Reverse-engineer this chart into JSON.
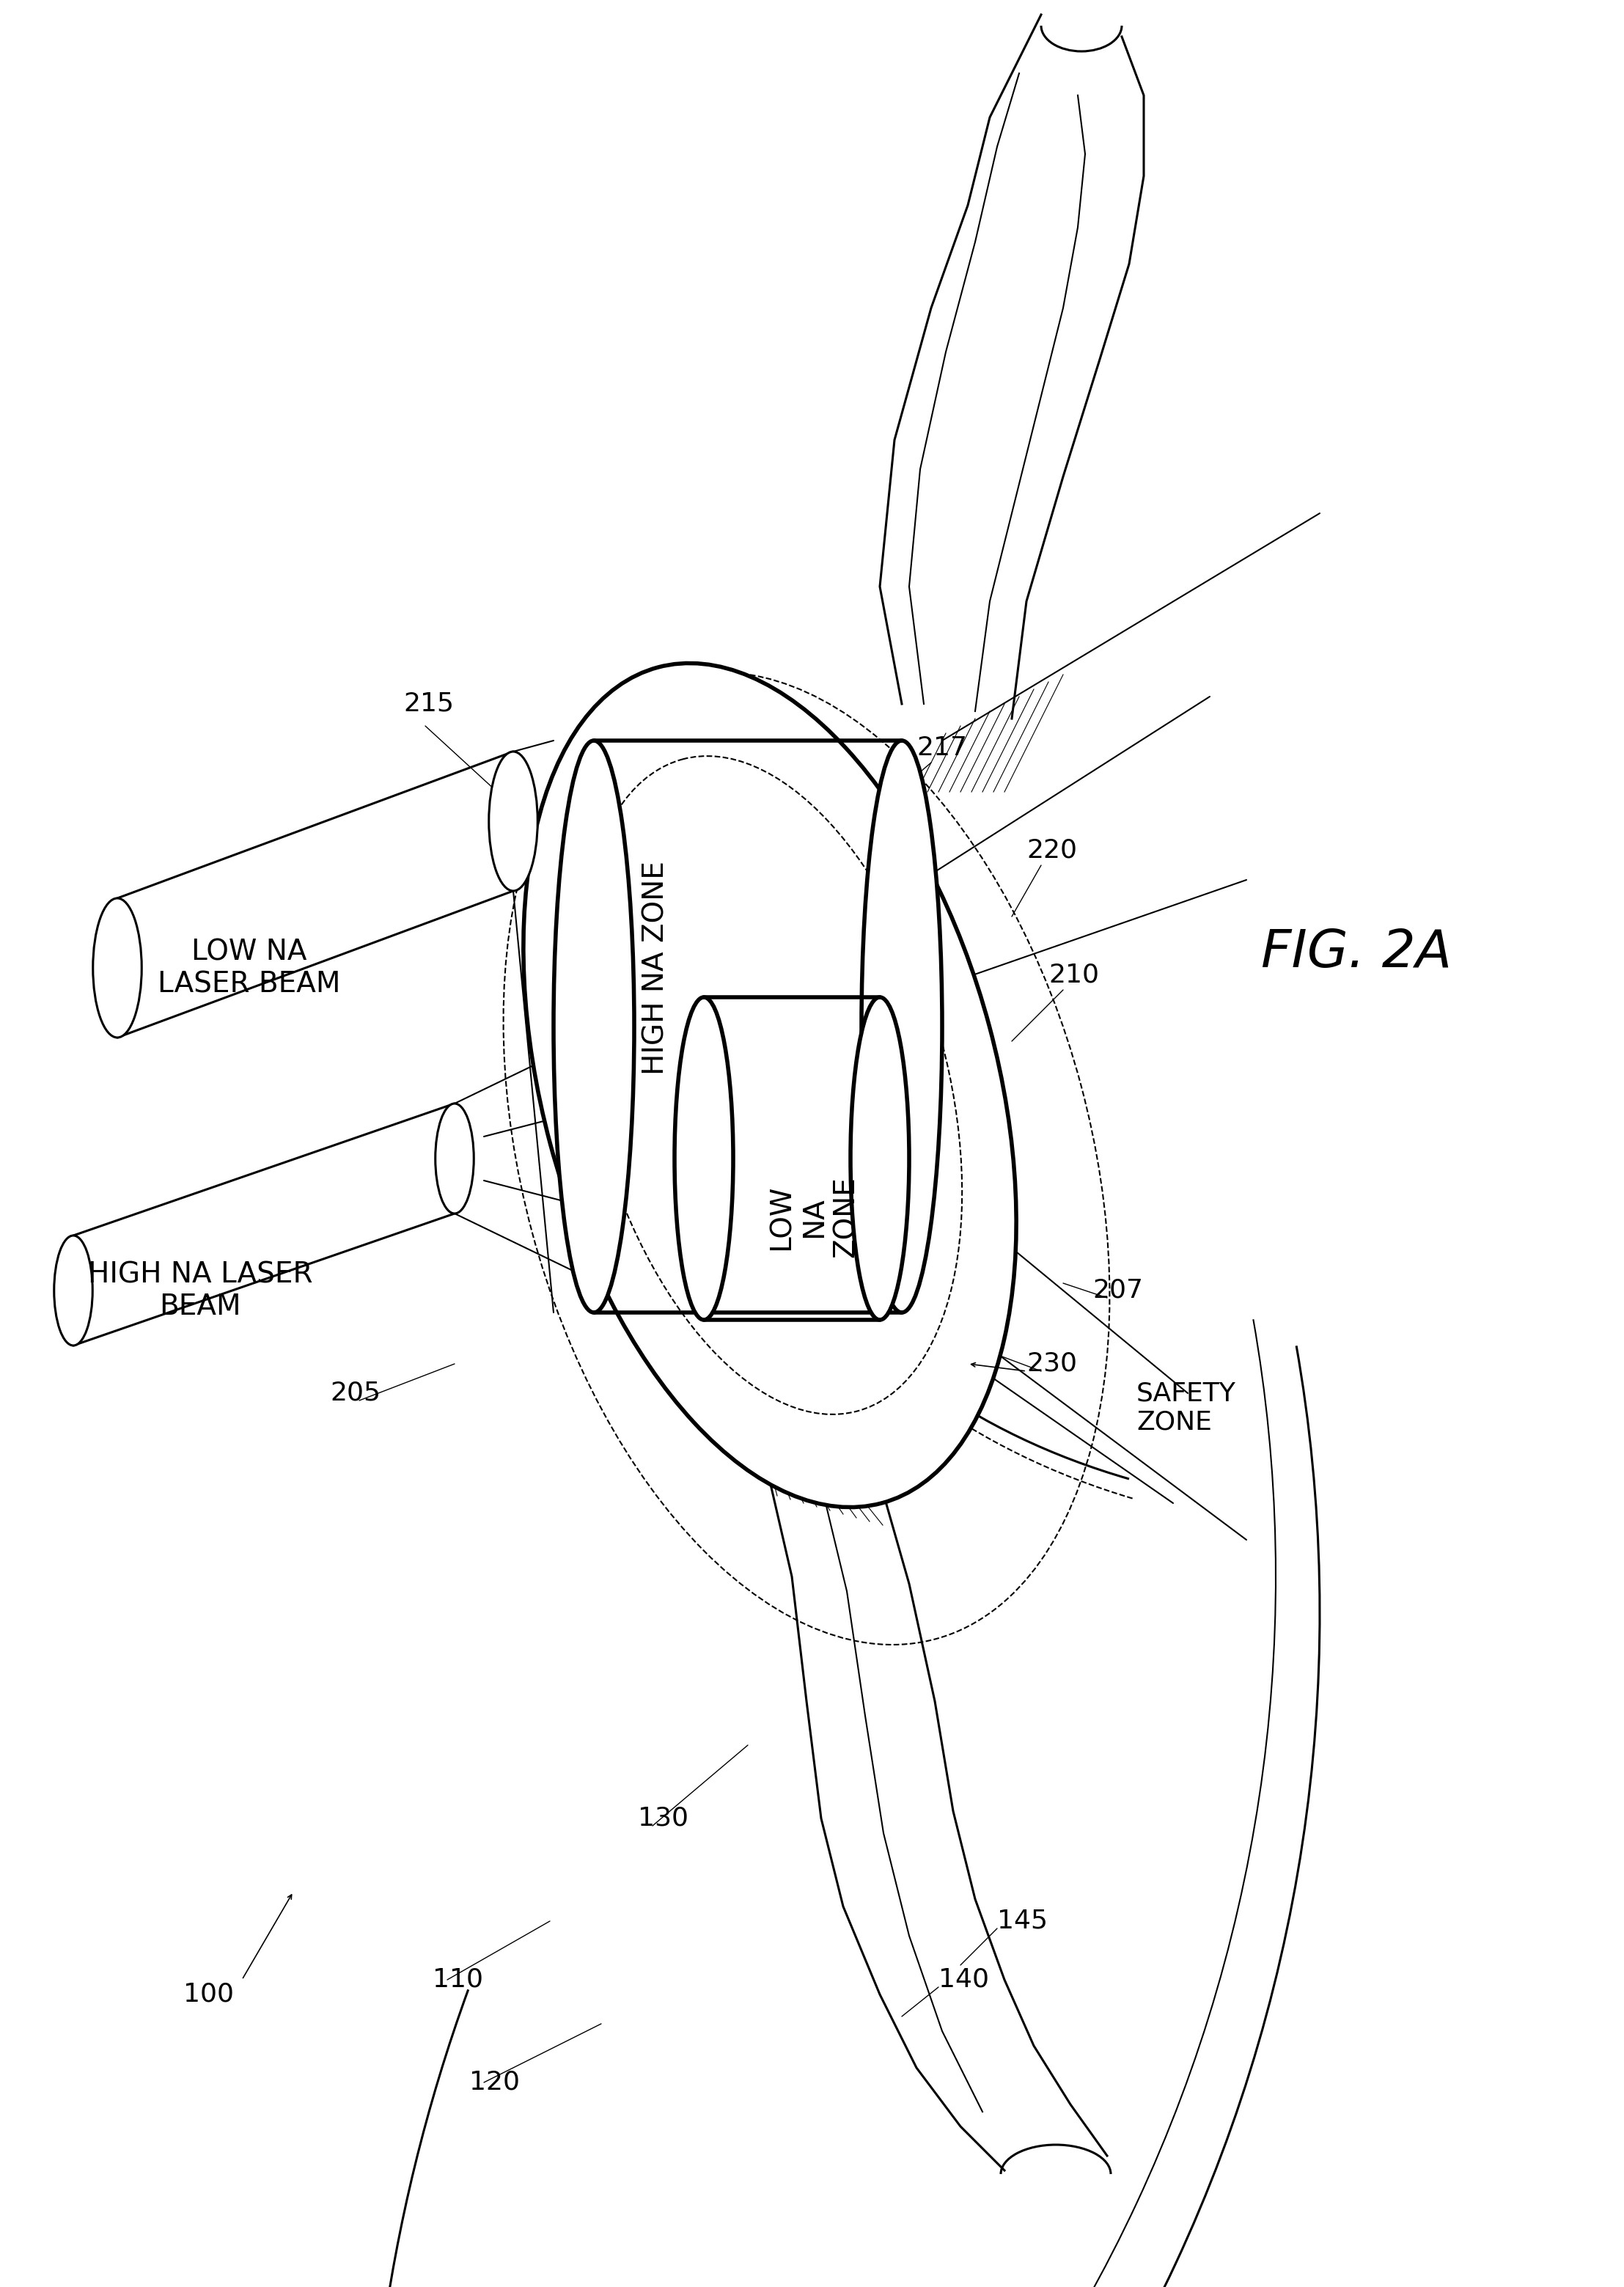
{
  "title": "FIG. 2A",
  "bg_color": "#ffffff",
  "line_color": "#000000",
  "labels": {
    "low_na_laser": "LOW NA\nLASER BEAM",
    "high_na_laser": "HIGH NA LASER\nBEAM",
    "high_na_zone": "HIGH NA ZONE",
    "low_na_zone": "LOW\nNA\nZONE",
    "safety_zone": "SAFETY\nZONE",
    "ref_100": "100",
    "ref_110": "110",
    "ref_120": "120",
    "ref_130": "130",
    "ref_140": "140",
    "ref_145": "145",
    "ref_205": "205",
    "ref_207": "207",
    "ref_210": "210",
    "ref_215": "215",
    "ref_217": "217",
    "ref_220": "220",
    "ref_230": "230"
  },
  "fig_label": "FIG. 2A"
}
